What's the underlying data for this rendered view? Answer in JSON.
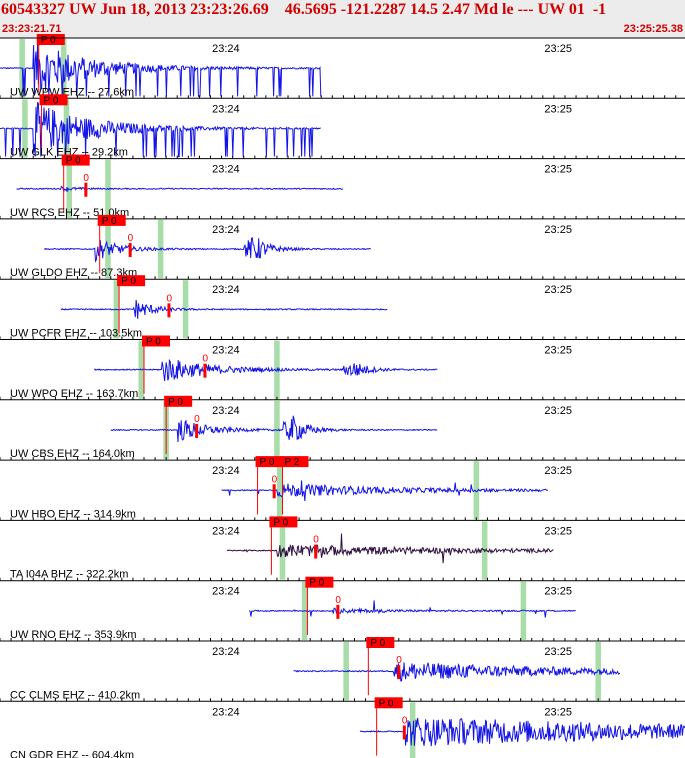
{
  "header": {
    "title": "60543327 UW Jun 18, 2013 23:23:26.69    46.5695 -121.2287 14.5 2.47 Md le --- UW 01  -1",
    "start_time": "23:23:21.71",
    "end_time": "23:25:25.38"
  },
  "chart_data": {
    "type": "line",
    "title": "60543327 UW Jun 18, 2013 23:23:26.69    46.5695 -121.2287 14.5 2.47 Md le --- UW 01  -1",
    "time_range": [
      "23:23:21.71",
      "23:25:25.38"
    ],
    "time_ticks": [
      "23:24",
      "23:25"
    ],
    "colors": {
      "trace": "#1414e6",
      "trace_bh": "#301040",
      "pick": "#ff0000",
      "window": "#a8dca8",
      "grid": "#000000",
      "text": "#000000"
    },
    "series": [
      {
        "name": "UW WPW EHZ -- 27.6km",
        "data_start_s": 0,
        "data_end_s": 58,
        "amp": 1.0,
        "clipped": true,
        "event_s": 6,
        "decay_s": 10,
        "color": "trace",
        "picks": [
          {
            "label": "P 0",
            "t_s": 7.0,
            "o_s": null
          }
        ],
        "windows_s": [
          [
            3.5,
            4.5
          ],
          [
            11.0,
            12.0
          ]
        ]
      },
      {
        "name": "UW GLK EHZ -- 29.2km",
        "data_start_s": 0,
        "data_end_s": 58,
        "amp": 1.0,
        "clipped": true,
        "event_s": 6,
        "decay_s": 10,
        "color": "trace",
        "picks": [
          {
            "label": "P 0",
            "t_s": 7.5,
            "o_s": null
          }
        ],
        "windows_s": [
          [
            4.0,
            5.0
          ],
          [
            11.5,
            12.5
          ]
        ]
      },
      {
        "name": "UW RCS EHZ -- 51.0km",
        "data_start_s": 3,
        "data_end_s": 62,
        "amp": 0.08,
        "clipped": false,
        "event_s": 11,
        "decay_s": 3,
        "color": "trace",
        "picks": [
          {
            "label": "P 0",
            "t_s": 11.5,
            "o_s": 15.5
          }
        ],
        "windows_s": [
          [
            12.0,
            13.0
          ],
          [
            19.0,
            20.0
          ]
        ]
      },
      {
        "name": "UW GLDO EHZ -- 87.3km",
        "data_start_s": 8,
        "data_end_s": 67,
        "amp": 0.45,
        "clipped": false,
        "event_s": 17,
        "decay_s": 4,
        "color": "trace",
        "burst_s": 46,
        "burst_amp": 0.5,
        "picks": [
          {
            "label": "P 0",
            "t_s": 18.0,
            "o_s": 23.5
          }
        ],
        "windows_s": [
          [
            19.0,
            20.0
          ],
          [
            28.5,
            29.5
          ]
        ]
      },
      {
        "name": "UW PCFR EHZ -- 103.5km",
        "data_start_s": 11,
        "data_end_s": 70,
        "amp": 0.45,
        "clipped": false,
        "event_s": 24,
        "decay_s": 3,
        "color": "trace",
        "picks": [
          {
            "label": "P 0",
            "t_s": 21.5,
            "o_s": 30.5
          }
        ],
        "windows_s": [
          [
            20.5,
            21.5
          ],
          [
            33.0,
            34.0
          ]
        ]
      },
      {
        "name": "UW WPO EHZ -- 163.7km",
        "data_start_s": 17,
        "data_end_s": 79,
        "amp": 0.5,
        "clipped": false,
        "event_s": 29,
        "decay_s": 8,
        "color": "trace",
        "burst_s": 64,
        "burst_amp": 0.3,
        "picks": [
          {
            "label": "P 0",
            "t_s": 26.0,
            "o_s": 37.0
          }
        ],
        "windows_s": [
          [
            25.0,
            26.0
          ],
          [
            49.5,
            50.5
          ]
        ]
      },
      {
        "name": "UW CBS EHZ -- 164.0km",
        "data_start_s": 20,
        "data_end_s": 79,
        "amp": 0.45,
        "clipped": false,
        "event_s": 32,
        "decay_s": 5,
        "color": "trace",
        "burst_s": 53,
        "burst_amp": 0.5,
        "picks": [
          {
            "label": "P 0",
            "t_s": 30.0,
            "o_s": 35.5
          }
        ],
        "windows_s": [
          [
            29.5,
            30.5
          ],
          [
            49.5,
            50.5
          ]
        ]
      },
      {
        "name": "UW HBO EHZ -- 314.9km",
        "data_start_s": 40,
        "data_end_s": 99,
        "amp": 0.25,
        "clipped": false,
        "event_s": 50,
        "decay_s": 20,
        "color": "trace",
        "spikes": true,
        "picks": [
          {
            "label": "P 0",
            "t_s": 46.5,
            "o_s": 49.5
          },
          {
            "label": "P 2",
            "t_s": 51.0,
            "o_s": null
          }
        ],
        "windows_s": [
          [
            50.0,
            51.0
          ],
          [
            85.5,
            86.5
          ]
        ]
      },
      {
        "name": "TA I04A BHZ -- 322.2km",
        "data_start_s": 41,
        "data_end_s": 100,
        "amp": 0.22,
        "clipped": false,
        "event_s": 50,
        "decay_s": 30,
        "color": "trace_bh",
        "spikes": true,
        "picks": [
          {
            "label": "P 0",
            "t_s": 49.0,
            "o_s": 57.0
          }
        ],
        "windows_s": [
          [
            50.5,
            51.5
          ],
          [
            87.0,
            88.0
          ]
        ]
      },
      {
        "name": "UW RNO EHZ -- 353.9km",
        "data_start_s": 45,
        "data_end_s": 104,
        "amp": 0.08,
        "clipped": false,
        "event_s": 60,
        "decay_s": 10,
        "color": "trace",
        "spikes": true,
        "picks": [
          {
            "label": "P 0",
            "t_s": 55.5,
            "o_s": 61.0
          }
        ],
        "windows_s": [
          [
            54.5,
            55.5
          ],
          [
            94.0,
            95.0
          ]
        ]
      },
      {
        "name": "CC CLMS EHZ -- 410.2km",
        "data_start_s": 53,
        "data_end_s": 112,
        "amp": 0.35,
        "clipped": false,
        "event_s": 71,
        "decay_s": 30,
        "color": "trace",
        "picks": [
          {
            "label": "P 0",
            "t_s": 66.5,
            "o_s": 72.0
          }
        ],
        "windows_s": [
          [
            62.0,
            63.0
          ],
          [
            107.5,
            108.5
          ]
        ]
      },
      {
        "name": "CN GDR EHZ -- 604.4km",
        "data_start_s": 65,
        "data_end_s": 124,
        "amp": 0.55,
        "clipped": false,
        "event_s": 73,
        "decay_s": 60,
        "color": "trace",
        "picks": [
          {
            "label": "P 0",
            "t_s": 68.0,
            "o_s": 73.0
          }
        ],
        "windows_s": [
          [
            74.0,
            75.0
          ]
        ]
      }
    ]
  }
}
